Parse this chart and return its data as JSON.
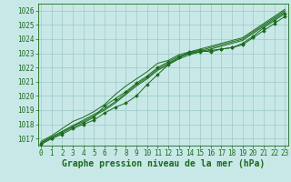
{
  "title": "Graphe pression niveau de la mer (hPa)",
  "bg_color": "#c8e8e8",
  "grid_color": "#9ec8c8",
  "line_color": "#1a6b1a",
  "marker_color": "#1a6b1a",
  "ylim": [
    1016.5,
    1026.5
  ],
  "xlim": [
    -0.3,
    23.3
  ],
  "yticks": [
    1017,
    1018,
    1019,
    1020,
    1021,
    1022,
    1023,
    1024,
    1025,
    1026
  ],
  "xticks": [
    0,
    1,
    2,
    3,
    4,
    5,
    6,
    7,
    8,
    9,
    10,
    11,
    12,
    13,
    14,
    15,
    16,
    17,
    18,
    19,
    20,
    21,
    22,
    23
  ],
  "series": [
    {
      "y": [
        1016.6,
        1017.0,
        1017.4,
        1017.8,
        1018.1,
        1018.5,
        1019.3,
        1019.8,
        1020.3,
        1020.9,
        1021.4,
        1022.0,
        1022.4,
        1022.8,
        1023.0,
        1023.1,
        1023.2,
        1023.3,
        1023.4,
        1023.6,
        1024.1,
        1024.6,
        1025.1,
        1025.6
      ],
      "marker": true
    },
    {
      "y": [
        1016.7,
        1017.1,
        1017.5,
        1017.9,
        1018.2,
        1018.6,
        1019.0,
        1019.5,
        1020.1,
        1020.7,
        1021.2,
        1021.8,
        1022.2,
        1022.6,
        1022.9,
        1023.1,
        1023.3,
        1023.5,
        1023.7,
        1023.9,
        1024.4,
        1024.9,
        1025.4,
        1025.9
      ],
      "marker": false
    },
    {
      "y": [
        1016.7,
        1017.1,
        1017.5,
        1017.9,
        1018.3,
        1018.7,
        1019.1,
        1019.6,
        1020.2,
        1020.8,
        1021.3,
        1021.9,
        1022.3,
        1022.7,
        1023.0,
        1023.2,
        1023.4,
        1023.6,
        1023.8,
        1024.0,
        1024.5,
        1025.0,
        1025.5,
        1026.0
      ],
      "marker": false
    },
    {
      "y": [
        1016.8,
        1017.2,
        1017.7,
        1018.2,
        1018.5,
        1018.9,
        1019.4,
        1020.1,
        1020.7,
        1021.2,
        1021.7,
        1022.3,
        1022.5,
        1022.9,
        1023.1,
        1023.3,
        1023.5,
        1023.7,
        1023.9,
        1024.1,
        1024.6,
        1025.1,
        1025.6,
        1026.1
      ],
      "marker": false
    },
    {
      "y": [
        1016.6,
        1017.0,
        1017.3,
        1017.7,
        1018.0,
        1018.3,
        1018.8,
        1019.2,
        1019.5,
        1020.0,
        1020.8,
        1021.5,
        1022.2,
        1022.7,
        1023.1,
        1023.2,
        1023.1,
        1023.3,
        1023.4,
        1023.7,
        1024.2,
        1024.8,
        1025.3,
        1025.8
      ],
      "marker": true
    }
  ],
  "title_fontsize": 7,
  "tick_fontsize": 5.5
}
